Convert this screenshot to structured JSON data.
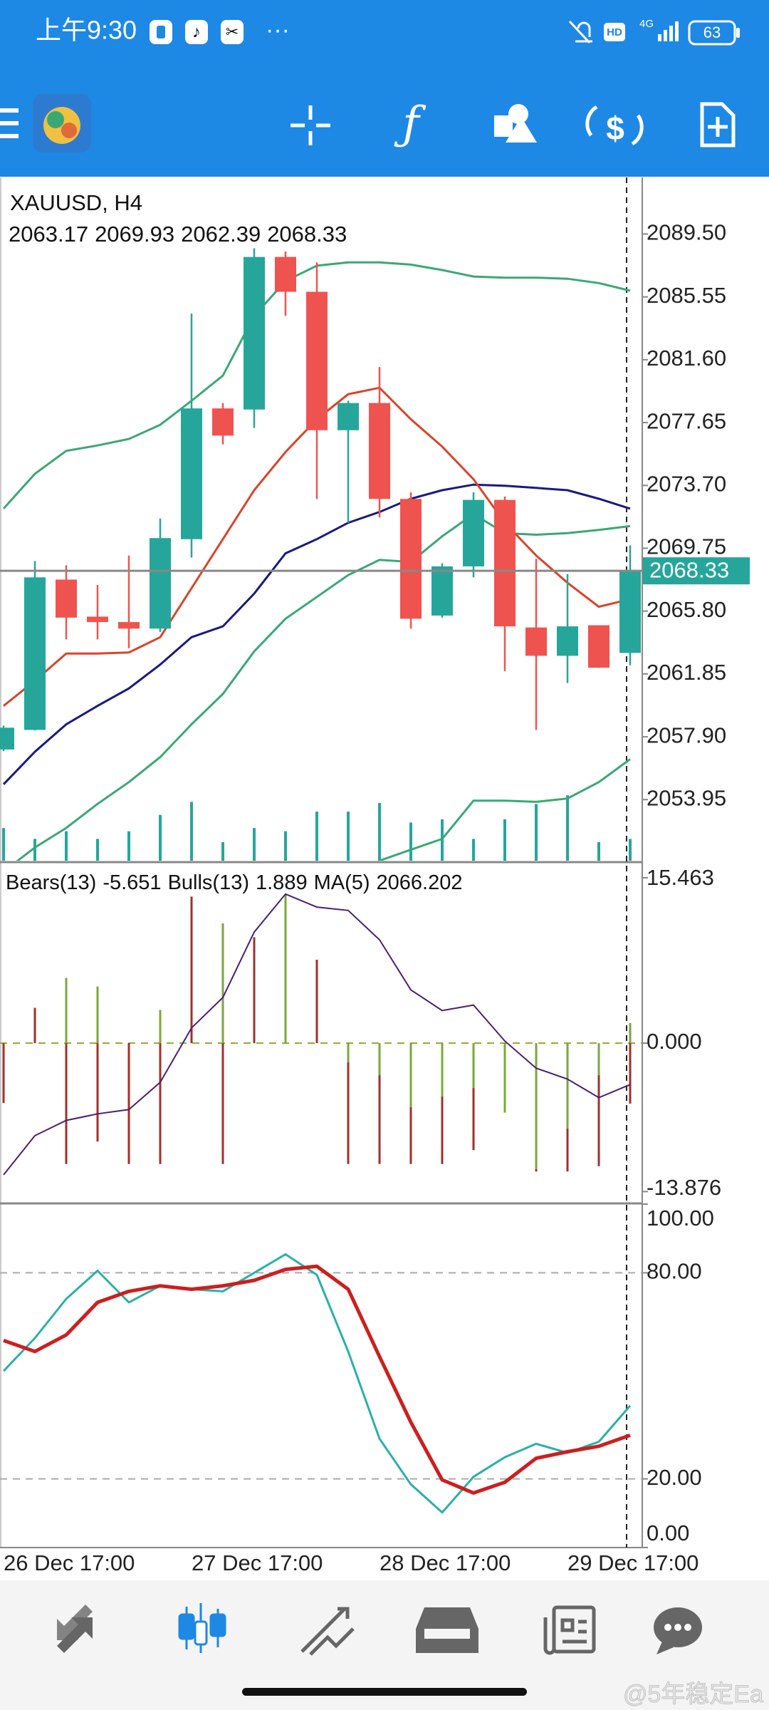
{
  "status_bar": {
    "time": "上午9:30",
    "hd": "HD",
    "network": "4G",
    "battery": "63"
  },
  "chart_data": [
    {
      "type": "candlestick",
      "title": "XAUUSD, H4",
      "up_color": "#26a69a",
      "down_color": "#ef5350",
      "categories": [
        "26 Dec 17:00",
        null,
        null,
        null,
        null,
        null,
        "27 Dec 17:00",
        null,
        null,
        null,
        null,
        null,
        "28 Dec 17:00",
        null,
        null,
        null,
        null,
        null,
        "29 Dec 17:00",
        null,
        null
      ],
      "open": [
        2057.1,
        2058.33,
        2067.78,
        2065.45,
        2065.11,
        2064.7,
        2070.32,
        2078.54,
        2078.47,
        2088.06,
        2085.87,
        2077.17,
        2078.88,
        2072.85,
        2065.52,
        2068.61,
        2072.79,
        2064.77,
        2062.99,
        2064.91,
        2063.17
      ],
      "high": [
        2058.6,
        2068.95,
        2068.68,
        2067.44,
        2069.29,
        2071.62,
        2084.5,
        2078.88,
        2088.61,
        2088.4,
        2087.72,
        2079.02,
        2081.14,
        2073.27,
        2068.81,
        2073.27,
        2073.0,
        2069.09,
        2068.13,
        2064.91,
        2069.93
      ],
      "low": [
        2057.0,
        2058.3,
        2064.02,
        2064.02,
        2063.47,
        2064.5,
        2069.16,
        2076.28,
        2077.31,
        2084.36,
        2072.85,
        2071.35,
        2071.69,
        2064.7,
        2065.39,
        2067.92,
        2062.03,
        2058.33,
        2061.28,
        2062.24,
        2062.39
      ],
      "close": [
        2058.47,
        2067.92,
        2065.39,
        2065.11,
        2064.7,
        2070.39,
        2078.54,
        2076.83,
        2088.06,
        2085.87,
        2077.17,
        2078.88,
        2072.85,
        2065.32,
        2068.61,
        2072.79,
        2064.84,
        2062.99,
        2064.84,
        2062.24,
        2068.33
      ],
      "volume": [
        30,
        20,
        27,
        20,
        27,
        42,
        54,
        17,
        30,
        27,
        45,
        45,
        53,
        35,
        38,
        20,
        38,
        52,
        60,
        17,
        20
      ],
      "volume_color": "#26a69a",
      "series": [
        {
          "color": "#3aa876",
          "values": [
            2072.24,
            2074.43,
            2075.87,
            2076.21,
            2076.62,
            2077.51,
            2079.02,
            2080.6,
            2084.36,
            2086.55,
            2087.51,
            2087.72,
            2087.72,
            2087.58,
            2087.24,
            2086.83,
            2086.76,
            2086.76,
            2086.69,
            2086.42,
            2085.94
          ]
        },
        {
          "color": "#3aa876",
          "values": [
            2049.43,
            2050.94,
            2052.17,
            2053.68,
            2055.05,
            2056.62,
            2058.68,
            2060.59,
            2063.27,
            2065.32,
            2066.69,
            2068.06,
            2069.02,
            2068.89,
            2070.5,
            2071.9,
            2070.7,
            2070.6,
            2070.7,
            2070.9,
            2071.14
          ]
        },
        {
          "color": "#3aa876",
          "values": [
            null,
            null,
            null,
            null,
            null,
            null,
            null,
            null,
            null,
            null,
            null,
            null,
            2050.11,
            2050.8,
            2051.48,
            2053.88,
            2053.88,
            2053.81,
            2054.02,
            2055.05,
            2056.49
          ]
        },
        {
          "color": "#1a1a80",
          "values": [
            2054.91,
            2056.96,
            2058.68,
            2059.84,
            2060.94,
            2062.44,
            2064.16,
            2064.84,
            2066.9,
            2069.43,
            2070.32,
            2071.35,
            2072.03,
            2072.86,
            2073.4,
            2073.75,
            2073.68,
            2073.54,
            2073.4,
            2072.86,
            2072.24
          ]
        },
        {
          "color": "#d9442a",
          "values": [
            2059.84,
            2061.42,
            2063.13,
            2063.13,
            2063.2,
            2064.16,
            2067.24,
            2070.32,
            2073.4,
            2075.8,
            2077.86,
            2079.43,
            2079.84,
            2077.86,
            2076.14,
            2074.09,
            2071.35,
            2069.29,
            2067.58,
            2066.07,
            2066.55
          ]
        }
      ],
      "ylim": [
        2050.11,
        2093.06
      ],
      "yticks": [
        {
          "value": 2089.5,
          "label": "2089.50"
        },
        2085.55,
        {
          "value": 2081.6,
          "label": "2081.60"
        },
        2077.65,
        {
          "value": 2073.7,
          "label": "2073.70"
        },
        2069.75,
        {
          "value": 2065.8,
          "label": "2065.80"
        },
        2061.85,
        {
          "value": 2057.9,
          "label": "2057.90"
        },
        2053.95
      ]
    },
    {
      "type": "bar",
      "ylim": [
        -14.85,
        16.79
      ],
      "yticks": [
        15.463,
        {
          "value": 0,
          "label": "0.000"
        },
        -13.876
      ],
      "levels": [
        0
      ],
      "level_color": "#9aa83a",
      "series": [
        {
          "name": "Bears(13)",
          "color": "#a0302a",
          "values": [
            -5.6,
            3.3,
            -11.3,
            -9.2,
            -11.3,
            -11.3,
            13.7,
            -11.3,
            9.9,
            11.1,
            7.8,
            -11.3,
            -11.3,
            -11.3,
            -11.3,
            -10.0,
            -6.4,
            -12.0,
            -12.0,
            -11.5,
            -5.651
          ]
        },
        {
          "name": "Bulls(13)",
          "color": "#7aa83a",
          "values": [
            0,
            0,
            6.1,
            5.3,
            0,
            3.1,
            0,
            11.2,
            0,
            13.9,
            0,
            -1.8,
            -3.0,
            -6.0,
            -5.0,
            -4.2,
            -6.5,
            -11.8,
            -8.0,
            -3.0,
            1.889
          ]
        },
        {
          "name": "MA(5)",
          "color": "#4b1f6f",
          "line": true,
          "values": [
            -12.31,
            -8.65,
            -7.22,
            -6.61,
            -6.21,
            -3.66,
            1.42,
            4.27,
            10.38,
            13.94,
            12.72,
            12.41,
            9.66,
            4.98,
            3.05,
            3.56,
            0.2,
            -2.34,
            -3.36,
            -5.09,
            -3.87
          ],
          "current": 2066.202
        }
      ]
    },
    {
      "type": "line",
      "ylim": [
        0,
        100
      ],
      "yticks": [
        {
          "value": 100,
          "label": "100.00"
        },
        {
          "value": 80,
          "label": "80.00"
        },
        {
          "value": 20,
          "label": "20.00"
        },
        {
          "value": 0,
          "label": "0.00"
        }
      ],
      "levels": [
        80,
        20
      ],
      "level_color": "#aaaaaa",
      "series": [
        {
          "color": "#2ab0a8",
          "width": 3,
          "values": [
            51.4,
            61.0,
            72.4,
            80.6,
            71.4,
            76.2,
            75.2,
            74.6,
            80.0,
            85.4,
            79.4,
            57.1,
            31.7,
            18.4,
            10.2,
            20.6,
            26.3,
            30.2,
            27.6,
            30.8,
            41.3
          ]
        },
        {
          "color": "#cc1f1f",
          "width": 5,
          "values": [
            60.3,
            57.1,
            61.9,
            71.4,
            74.6,
            76.2,
            75.2,
            76.2,
            77.8,
            81.0,
            81.9,
            75.2,
            55.6,
            36.5,
            19.7,
            15.9,
            19.0,
            26.0,
            27.9,
            29.5,
            32.7
          ]
        }
      ]
    }
  ],
  "watermark": "@5年稳定Ea"
}
